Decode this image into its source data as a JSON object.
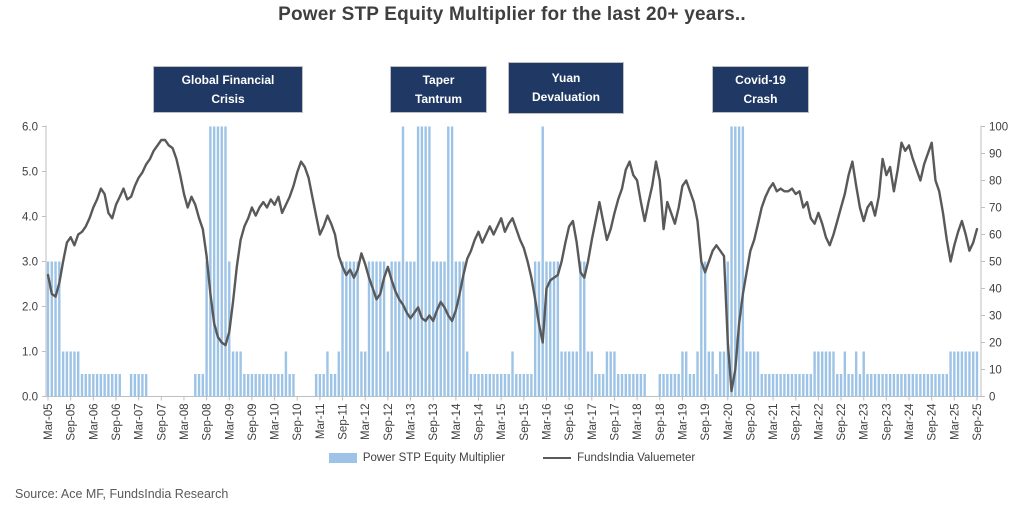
{
  "title": "Power STP Equity Multiplier for the last 20+ years..",
  "source": "Source: Ace MF, FundsIndia Research",
  "annotations": [
    {
      "line1": "Global Financial",
      "line2": "Crisis"
    },
    {
      "line1": "Taper",
      "line2": "Tantrum"
    },
    {
      "line1": "Yuan",
      "line2": "Devaluation"
    },
    {
      "line1": "Covid-19",
      "line2": "Crash"
    }
  ],
  "legend": [
    {
      "label": "Power STP Equity Multiplier",
      "swatch": "bar",
      "color": "#9DC3E6"
    },
    {
      "label": "FundsIndia Valuemeter",
      "swatch": "line",
      "color": "#595959"
    }
  ],
  "colors": {
    "bar": "#9DC3E6",
    "line": "#595959",
    "annotation_box": "#1F3864",
    "annotation_text": "#FFFFFF",
    "axis_line": "#BFBFBF",
    "tick_text": "#404040",
    "title_text": "#3F3F3F",
    "source_text": "#595959",
    "background": "#FFFFFF"
  },
  "chart_data": {
    "type": "bar+line",
    "x_unit": "month",
    "x_start": "Mar-05",
    "x_end": "Sep-25",
    "grid": false,
    "legend_position": "bottom",
    "x_tick_labels": [
      "Mar-05",
      "Sep-05",
      "Mar-06",
      "Sep-06",
      "Mar-07",
      "Sep-07",
      "Mar-08",
      "Sep-08",
      "Mar-09",
      "Sep-09",
      "Mar-10",
      "Sep-10",
      "Mar-11",
      "Sep-11",
      "Mar-12",
      "Sep-12",
      "Mar-13",
      "Sep-13",
      "Mar-14",
      "Sep-14",
      "Mar-15",
      "Sep-15",
      "Mar-16",
      "Sep-16",
      "Mar-17",
      "Sep-17",
      "Mar-18",
      "Sep-18",
      "Mar-19",
      "Sep-19",
      "Mar-20",
      "Sep-20",
      "Mar-21",
      "Sep-21",
      "Mar-22",
      "Sep-22",
      "Mar-23",
      "Sep-23",
      "Mar-24",
      "Sep-24",
      "Mar-25",
      "Sep-25"
    ],
    "left_axis": {
      "series": "Power STP Equity Multiplier",
      "range": [
        0,
        6
      ],
      "ticks": [
        "0.0",
        "1.0",
        "2.0",
        "3.0",
        "4.0",
        "5.0",
        "6.0"
      ]
    },
    "right_axis": {
      "series": "FundsIndia Valuemeter",
      "range": [
        0,
        100
      ],
      "tick_step": 10
    },
    "series": [
      {
        "name": "Power STP Equity Multiplier",
        "type": "bar",
        "axis": "left",
        "color": "#9DC3E6",
        "values": [
          3,
          3,
          3,
          3,
          1,
          1,
          1,
          1,
          1,
          0.5,
          0.5,
          0.5,
          0.5,
          0.5,
          0.5,
          0.5,
          0.5,
          0.5,
          0.5,
          0.5,
          0,
          0,
          0.5,
          0.5,
          0.5,
          0.5,
          0.5,
          0,
          0,
          0,
          0,
          0,
          0,
          0,
          0,
          0,
          0,
          0,
          0,
          0.5,
          0.5,
          0.5,
          3,
          6,
          6,
          6,
          6,
          6,
          3,
          1,
          1,
          1,
          0.5,
          0.5,
          0.5,
          0.5,
          0.5,
          0.5,
          0.5,
          0.5,
          0.5,
          0.5,
          0.5,
          1,
          0.5,
          0.5,
          0,
          0,
          0,
          0,
          0,
          0.5,
          0.5,
          0.5,
          1,
          0.5,
          0.5,
          1,
          3,
          3,
          3,
          3,
          3,
          1,
          1,
          3,
          3,
          3,
          3,
          3,
          1,
          3,
          3,
          3,
          6,
          3,
          3,
          3,
          6,
          6,
          6,
          6,
          3,
          3,
          3,
          3,
          6,
          6,
          3,
          3,
          3,
          1,
          0.5,
          0.5,
          0.5,
          0.5,
          0.5,
          0.5,
          0.5,
          0.5,
          0.5,
          0.5,
          0.5,
          1,
          0.5,
          0.5,
          0.5,
          0.5,
          0.5,
          3,
          3,
          6,
          3,
          3,
          3,
          3,
          1,
          1,
          1,
          1,
          1,
          3,
          3,
          1,
          1,
          0.5,
          0.5,
          0.5,
          1,
          1,
          1,
          0.5,
          0.5,
          0.5,
          0.5,
          0.5,
          0.5,
          0.5,
          0.5,
          0,
          0,
          0,
          0.5,
          0.5,
          0.5,
          0.5,
          0.5,
          0.5,
          1,
          1,
          0.5,
          0.5,
          1,
          3,
          3,
          1,
          1,
          0.5,
          1,
          1,
          3,
          6,
          6,
          6,
          6,
          1,
          1,
          1,
          1,
          0.5,
          0.5,
          0.5,
          0.5,
          0.5,
          0.5,
          0.5,
          0.5,
          0.5,
          0.5,
          0.5,
          0.5,
          0.5,
          0.5,
          1,
          1,
          1,
          1,
          1,
          1,
          0.5,
          0.5,
          1,
          0.5,
          0.5,
          1,
          0.5,
          1,
          0.5,
          0.5,
          0.5,
          0.5,
          0.5,
          0.5,
          0.5,
          0.5,
          0.5,
          0.5,
          0.5,
          0.5,
          0.5,
          0.5,
          0.5,
          0.5,
          0.5,
          0.5,
          0.5,
          0.5,
          0.5,
          0.5,
          1,
          1,
          1,
          1,
          1,
          1,
          1,
          1
        ]
      },
      {
        "name": "FundsIndia Valuemeter",
        "type": "line",
        "axis": "right",
        "color": "#595959",
        "values": [
          45,
          38,
          37,
          42,
          50,
          57,
          59,
          56,
          60,
          61,
          63,
          66,
          70,
          73,
          77,
          75,
          68,
          66,
          71,
          74,
          77,
          73,
          74,
          78,
          81,
          83,
          86,
          88,
          91,
          93,
          95,
          95,
          93,
          92,
          88,
          82,
          75,
          70,
          74,
          71,
          66,
          62,
          52,
          38,
          27,
          22,
          20,
          19,
          24,
          35,
          48,
          58,
          63,
          66,
          70,
          67,
          70,
          72,
          70,
          73,
          71,
          74,
          68,
          71,
          74,
          78,
          83,
          87,
          85,
          81,
          74,
          67,
          60,
          63,
          67,
          64,
          60,
          52,
          48,
          45,
          47,
          44,
          47,
          53,
          49,
          44,
          40,
          36,
          38,
          44,
          48,
          43,
          39,
          36,
          34,
          31,
          29,
          31,
          33,
          29,
          28,
          30,
          28,
          32,
          35,
          33,
          30,
          28,
          32,
          38,
          45,
          51,
          54,
          58,
          61,
          57,
          60,
          63,
          60,
          63,
          66,
          61,
          64,
          66,
          62,
          58,
          55,
          50,
          44,
          36,
          27,
          20,
          40,
          43,
          44,
          45,
          50,
          57,
          63,
          65,
          57,
          46,
          44,
          50,
          58,
          65,
          72,
          65,
          58,
          62,
          68,
          73,
          77,
          84,
          87,
          82,
          80,
          72,
          65,
          72,
          78,
          87,
          80,
          62,
          72,
          68,
          64,
          70,
          78,
          80,
          76,
          72,
          65,
          50,
          46,
          50,
          54,
          56,
          54,
          52,
          20,
          2,
          10,
          27,
          38,
          46,
          54,
          58,
          64,
          70,
          74,
          77,
          79,
          76,
          77,
          76,
          76,
          77,
          75,
          76,
          70,
          72,
          66,
          64,
          68,
          64,
          59,
          56,
          60,
          65,
          70,
          75,
          82,
          87,
          78,
          70,
          65,
          70,
          72,
          67,
          74,
          88,
          82,
          85,
          76,
          84,
          94,
          91,
          93,
          88,
          84,
          80,
          86,
          90,
          94,
          80,
          76,
          68,
          58,
          50,
          56,
          61,
          65,
          60,
          54,
          57,
          62
        ]
      }
    ]
  }
}
